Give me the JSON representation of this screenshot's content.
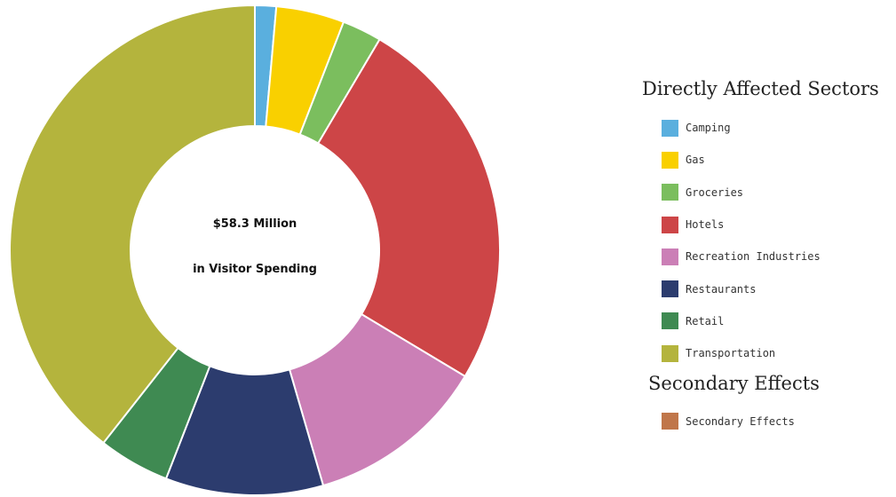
{
  "chart_data": {
    "type": "pie",
    "variant": "donut",
    "center_label": {
      "line1": "$58.3 Million",
      "line2": "in Visitor Spending"
    },
    "categories": [
      "Camping",
      "Gas",
      "Groceries",
      "Hotels",
      "Recreation Industries",
      "Restaurants",
      "Retail",
      "Transportation"
    ],
    "values_percent": [
      1.4,
      4.5,
      2.6,
      25.1,
      11.9,
      10.4,
      4.7,
      39.4
    ],
    "colors": [
      "#5aafde",
      "#f9d000",
      "#7bbe5e",
      "#cd4547",
      "#cb7fb6",
      "#2c3c6e",
      "#3f8a52",
      "#b4b43d"
    ],
    "start_angle_deg": 0,
    "direction": "clockwise",
    "legend_position": "right",
    "legend_sections": [
      {
        "heading": "Directly Affected Sectors",
        "items": [
          {
            "label": "Camping",
            "color": "#5aafde"
          },
          {
            "label": "Gas",
            "color": "#f9d000"
          },
          {
            "label": "Groceries",
            "color": "#7bbe5e"
          },
          {
            "label": "Hotels",
            "color": "#cd4547"
          },
          {
            "label": "Recreation Industries",
            "color": "#cb7fb6"
          },
          {
            "label": "Restaurants",
            "color": "#2c3c6e"
          },
          {
            "label": "Retail",
            "color": "#3f8a52"
          },
          {
            "label": "Transportation",
            "color": "#b4b43d"
          }
        ]
      },
      {
        "heading": "Secondary Effects",
        "items": [
          {
            "label": "Secondary Effects",
            "color": "#c0764a"
          }
        ]
      }
    ]
  }
}
